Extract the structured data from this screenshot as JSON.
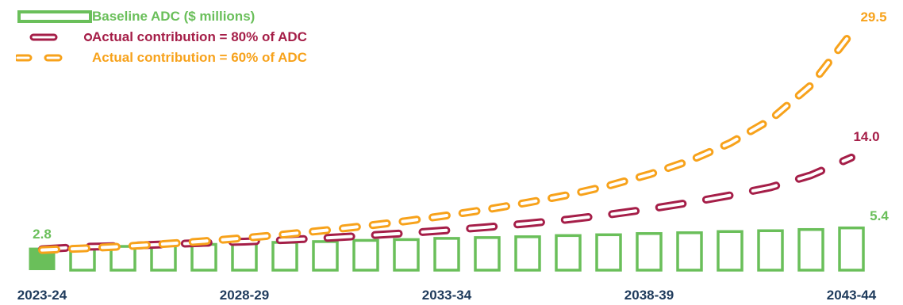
{
  "chart_data": {
    "type": "bar",
    "categories": [
      "2023-24",
      "2024-25",
      "2025-26",
      "2026-27",
      "2027-28",
      "2028-29",
      "2029-30",
      "2030-31",
      "2031-32",
      "2032-33",
      "2033-34",
      "2034-35",
      "2035-36",
      "2036-37",
      "2037-38",
      "2038-39",
      "2039-40",
      "2040-41",
      "2041-42",
      "2042-43",
      "2043-44"
    ],
    "x_tick_labels": [
      "2023-24",
      "2028-29",
      "2033-34",
      "2038-39",
      "2043-44"
    ],
    "series": [
      {
        "name": "Baseline ADC ($ millions)",
        "type": "bar",
        "color": "#6abf5a",
        "values": [
          2.8,
          3.0,
          3.1,
          3.2,
          3.35,
          3.5,
          3.6,
          3.7,
          3.85,
          3.95,
          4.1,
          4.2,
          4.3,
          4.45,
          4.55,
          4.7,
          4.8,
          4.95,
          5.05,
          5.2,
          5.4
        ],
        "end_label": "5.4",
        "start_label": "2.8"
      },
      {
        "name": "Actual contribution = 80% of ADC",
        "type": "line",
        "style": "long-dash",
        "color": "#a51e48",
        "values": [
          2.6,
          2.9,
          3.0,
          3.2,
          3.4,
          3.55,
          3.75,
          4.0,
          4.3,
          4.6,
          4.95,
          5.35,
          5.8,
          6.3,
          6.9,
          7.6,
          8.4,
          9.3,
          10.3,
          11.8,
          14.0
        ],
        "end_label": "14.0"
      },
      {
        "name": "Actual contribution = 60% of ADC",
        "type": "line",
        "style": "dash",
        "color": "#f7a21b",
        "values": [
          2.5,
          2.7,
          2.95,
          3.25,
          3.6,
          4.0,
          4.45,
          4.95,
          5.5,
          6.1,
          6.8,
          7.55,
          8.4,
          9.35,
          10.5,
          11.9,
          13.6,
          15.8,
          18.7,
          23.0,
          29.5
        ],
        "end_label": "29.5"
      }
    ],
    "ylim": [
      0,
      33
    ],
    "gridlines": false,
    "legend_position": "top-left"
  }
}
